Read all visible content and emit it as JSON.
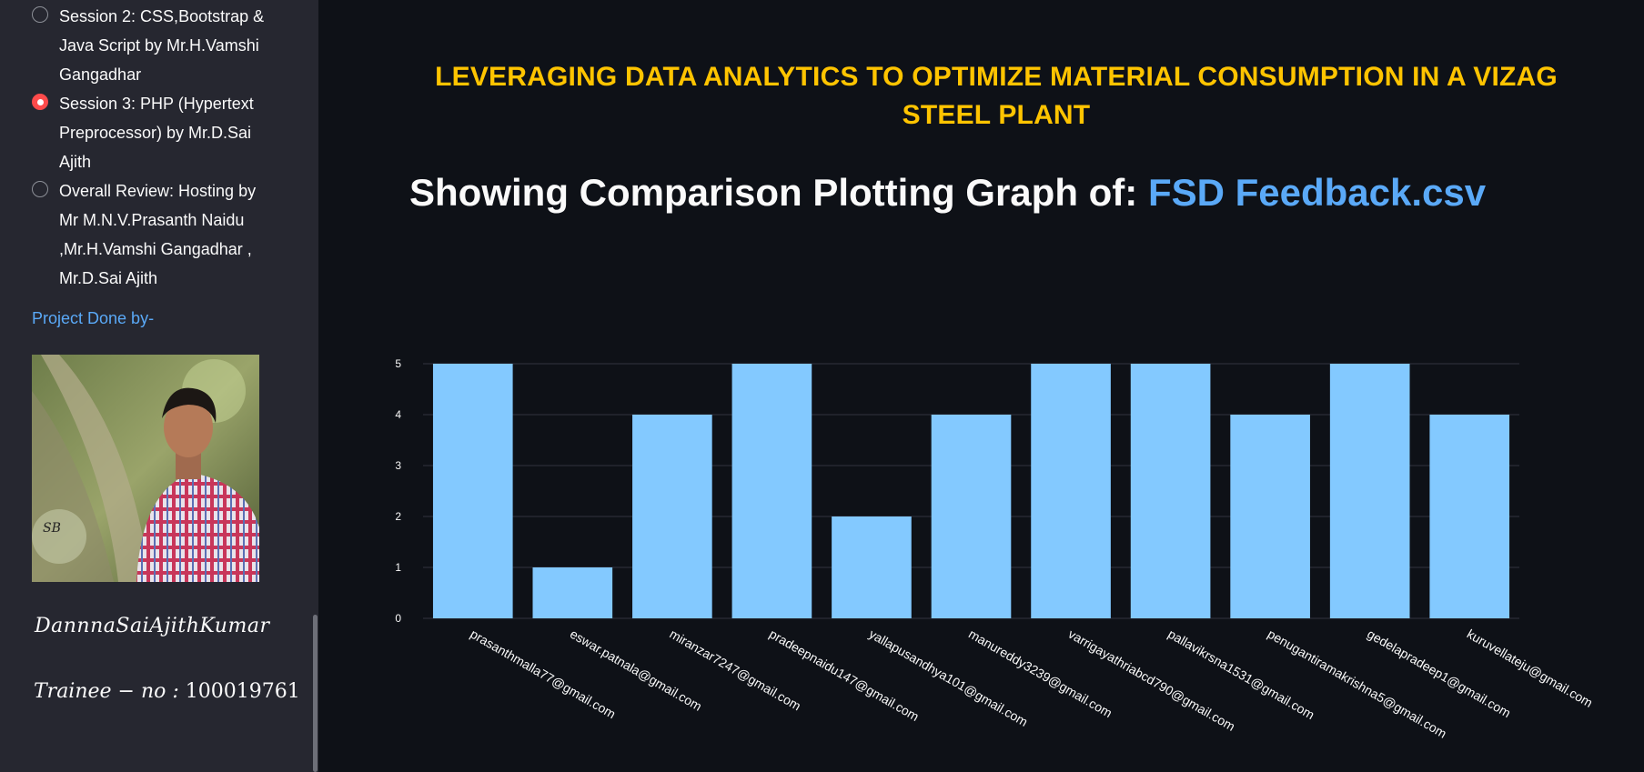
{
  "sidebar": {
    "sessions": [
      {
        "label": "Session 2: CSS,Bootstrap & Java Script by Mr.H.Vamshi Gangadhar",
        "selected": false
      },
      {
        "label": "Session 3: PHP (Hypertext Preprocessor) by Mr.D.Sai Ajith",
        "selected": true
      },
      {
        "label": "Overall Review: Hosting by Mr M.N.V.Prasanth Naidu ,Mr.H.Vamshi Gangadhar , Mr.D.Sai Ajith",
        "selected": false
      }
    ],
    "project_done_label": "Project Done by-",
    "name_text": "DannnaSaiAjithKumar",
    "trainee_prefix": "Trainee − no : ",
    "trainee_number": "100019761"
  },
  "main": {
    "headline": "LEVERAGING DATA ANALYTICS TO OPTIMIZE MATERIAL CONSUMPTION IN A VIZAG STEEL PLANT",
    "subheading_prefix": "Showing Comparison Plotting Graph of: ",
    "subheading_file": "FSD Feedback.csv"
  },
  "colors": {
    "background": "#0e1117",
    "sidebar": "#262730",
    "headline": "#ffc400",
    "accent_blue": "#5aa9f7",
    "bar": "#83c9ff",
    "radio_selected": "#ff4b4b"
  },
  "chart_data": {
    "type": "bar",
    "categories": [
      "prasanthmalla77@gmail.com",
      "eswar.patnala@gmail.com",
      "miranzar7247@gmail.com",
      "pradeepnaidu147@gmail.com",
      "yallapusandhya101@gmail.com",
      "manureddy3239@gmail.com",
      "varrigayathriabcd790@gmail.com",
      "pallavikrsna1531@gmail.com",
      "penugantiramakrishna5@gmail.com",
      "gedelapradeep1@gmail.com",
      "kuruvellateju@gmail.com"
    ],
    "values": [
      5,
      1,
      4,
      5,
      2,
      4,
      5,
      5,
      4,
      5,
      4
    ],
    "ylim": [
      0,
      5
    ],
    "yticks": [
      0,
      1,
      2,
      3,
      4,
      5
    ],
    "grid": true,
    "title": "",
    "xlabel": "",
    "ylabel": ""
  }
}
